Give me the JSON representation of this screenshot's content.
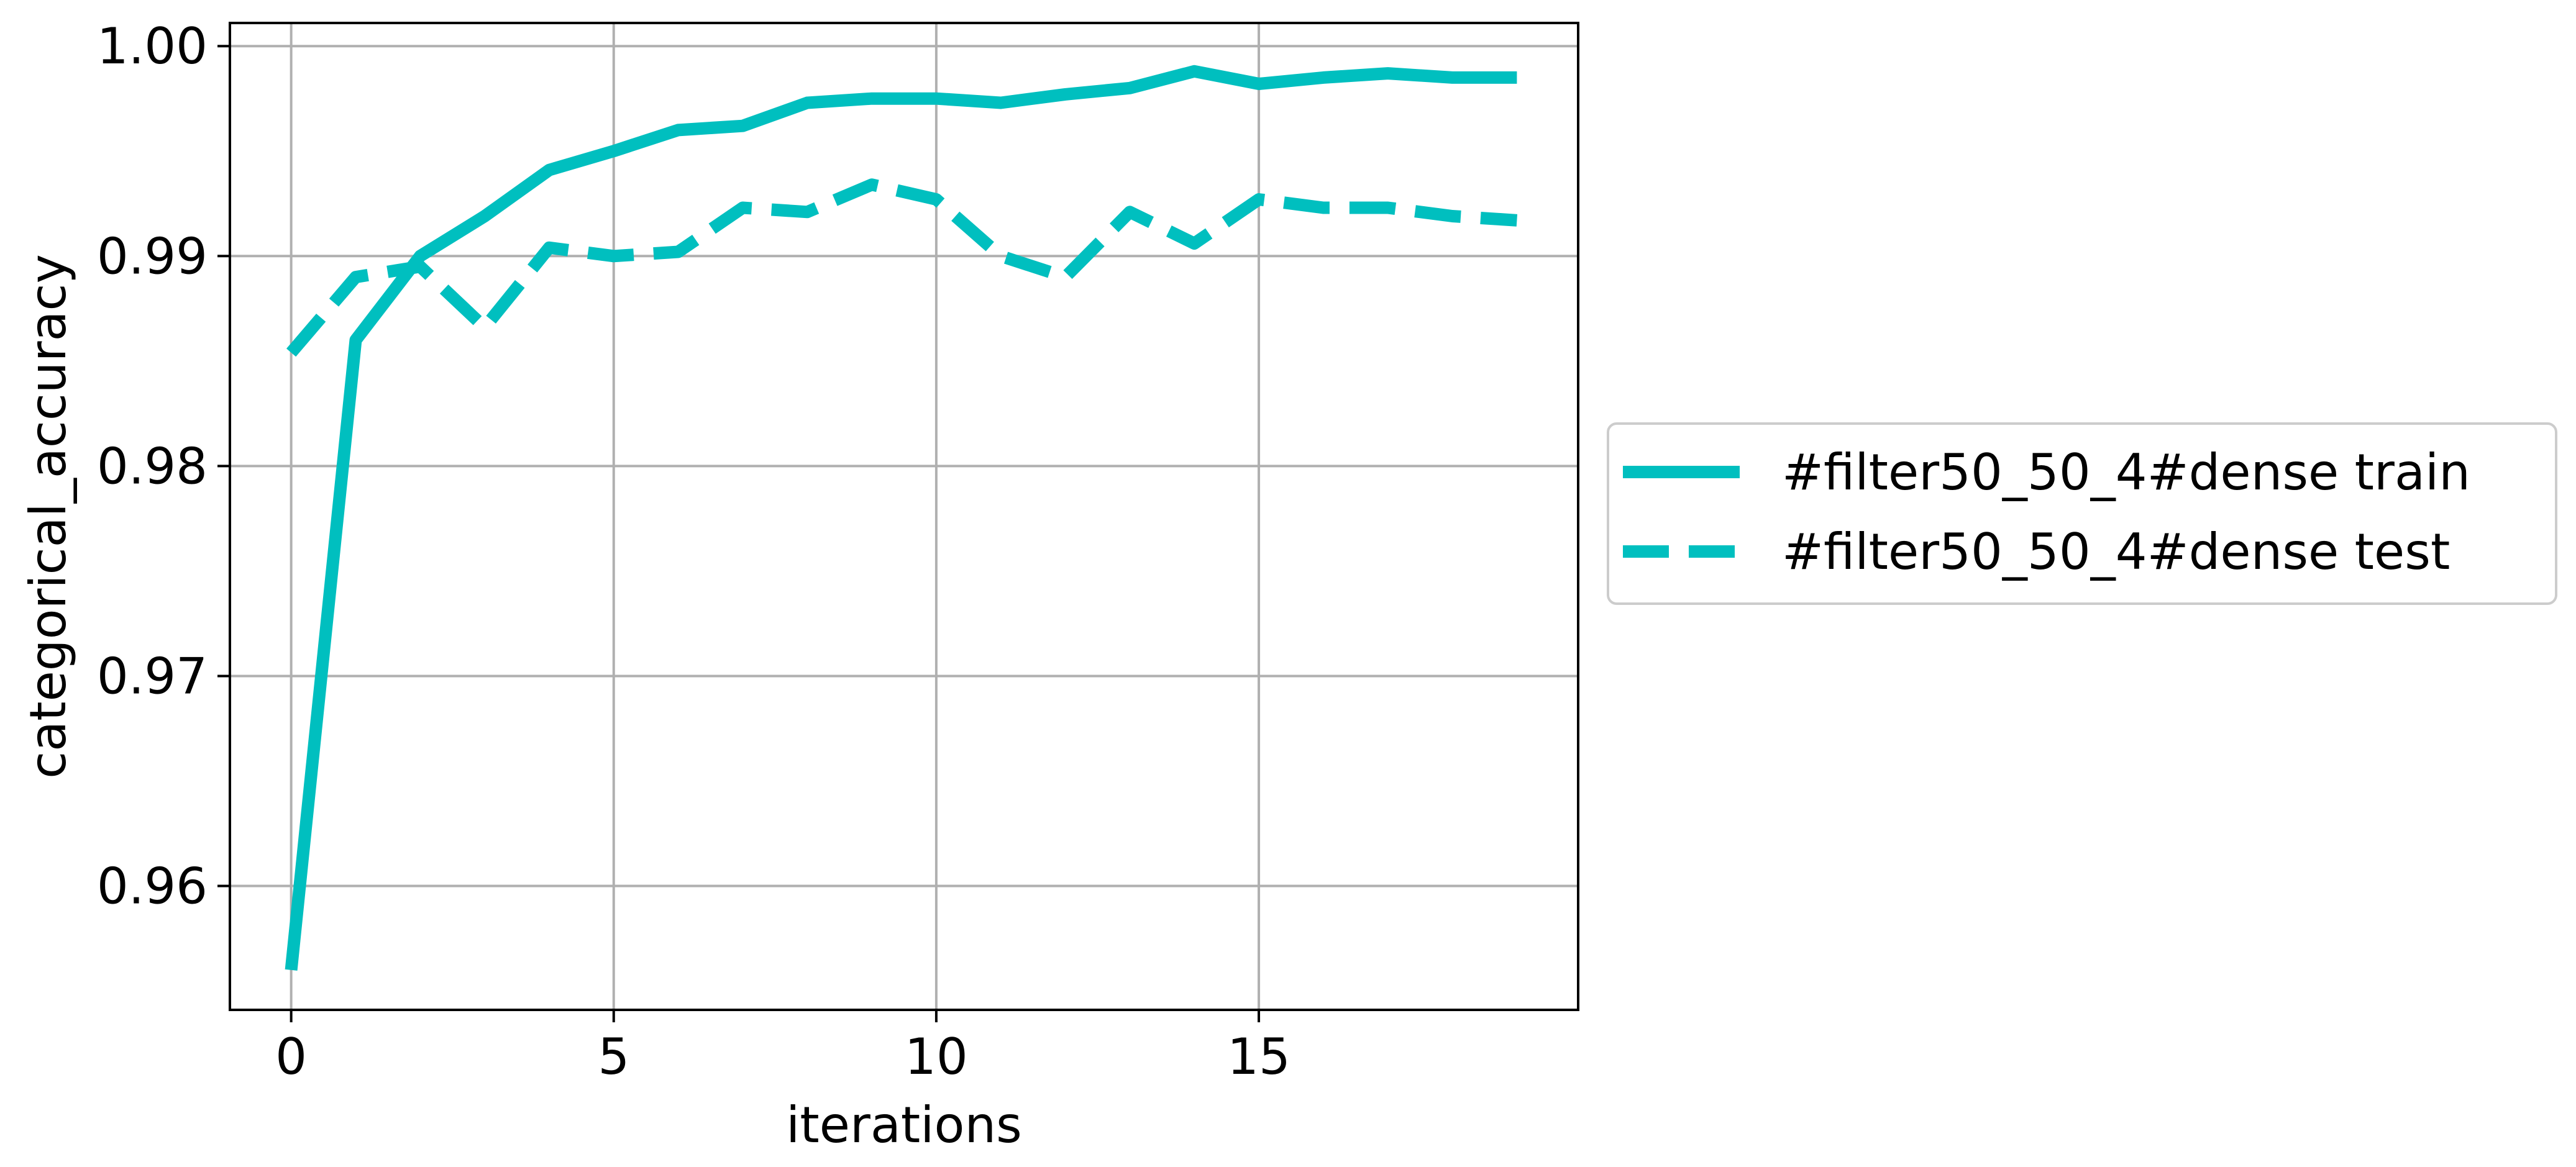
{
  "chart_data": {
    "type": "line",
    "title": "",
    "xlabel": "iterations",
    "ylabel": "categorical_accuracy",
    "xlim": [
      -0.95,
      19.95
    ],
    "ylim": [
      0.9541,
      1.0011
    ],
    "x_ticks": [
      0,
      5,
      10,
      15
    ],
    "x_tick_labels": [
      "0",
      "5",
      "10",
      "15"
    ],
    "y_ticks": [
      0.96,
      0.97,
      0.98,
      0.99,
      1.0
    ],
    "y_tick_labels": [
      "0.96",
      "0.97",
      "0.98",
      "0.99",
      "1.00"
    ],
    "grid": true,
    "legend_position": "outside-right",
    "x": [
      0,
      1,
      2,
      3,
      4,
      5,
      6,
      7,
      8,
      9,
      10,
      11,
      12,
      13,
      14,
      15,
      16,
      17,
      18,
      19
    ],
    "series": [
      {
        "name": "#filter50_50_4#dense train",
        "color": "#00bfbf",
        "linestyle": "solid",
        "values": [
          0.956,
          0.986,
          0.99,
          0.9919,
          0.9941,
          0.995,
          0.996,
          0.9962,
          0.9973,
          0.9975,
          0.9975,
          0.9973,
          0.9977,
          0.998,
          0.9988,
          0.9982,
          0.9985,
          0.9987,
          0.9985,
          0.9985
        ]
      },
      {
        "name": "#filter50_50_4#dense test",
        "color": "#00bfbf",
        "linestyle": "dashed",
        "values": [
          0.9854,
          0.989,
          0.9895,
          0.9866,
          0.9904,
          0.99,
          0.9902,
          0.9923,
          0.9921,
          0.9934,
          0.9927,
          0.99,
          0.989,
          0.9921,
          0.9906,
          0.9927,
          0.9923,
          0.9923,
          0.9919,
          0.9917
        ]
      }
    ]
  }
}
